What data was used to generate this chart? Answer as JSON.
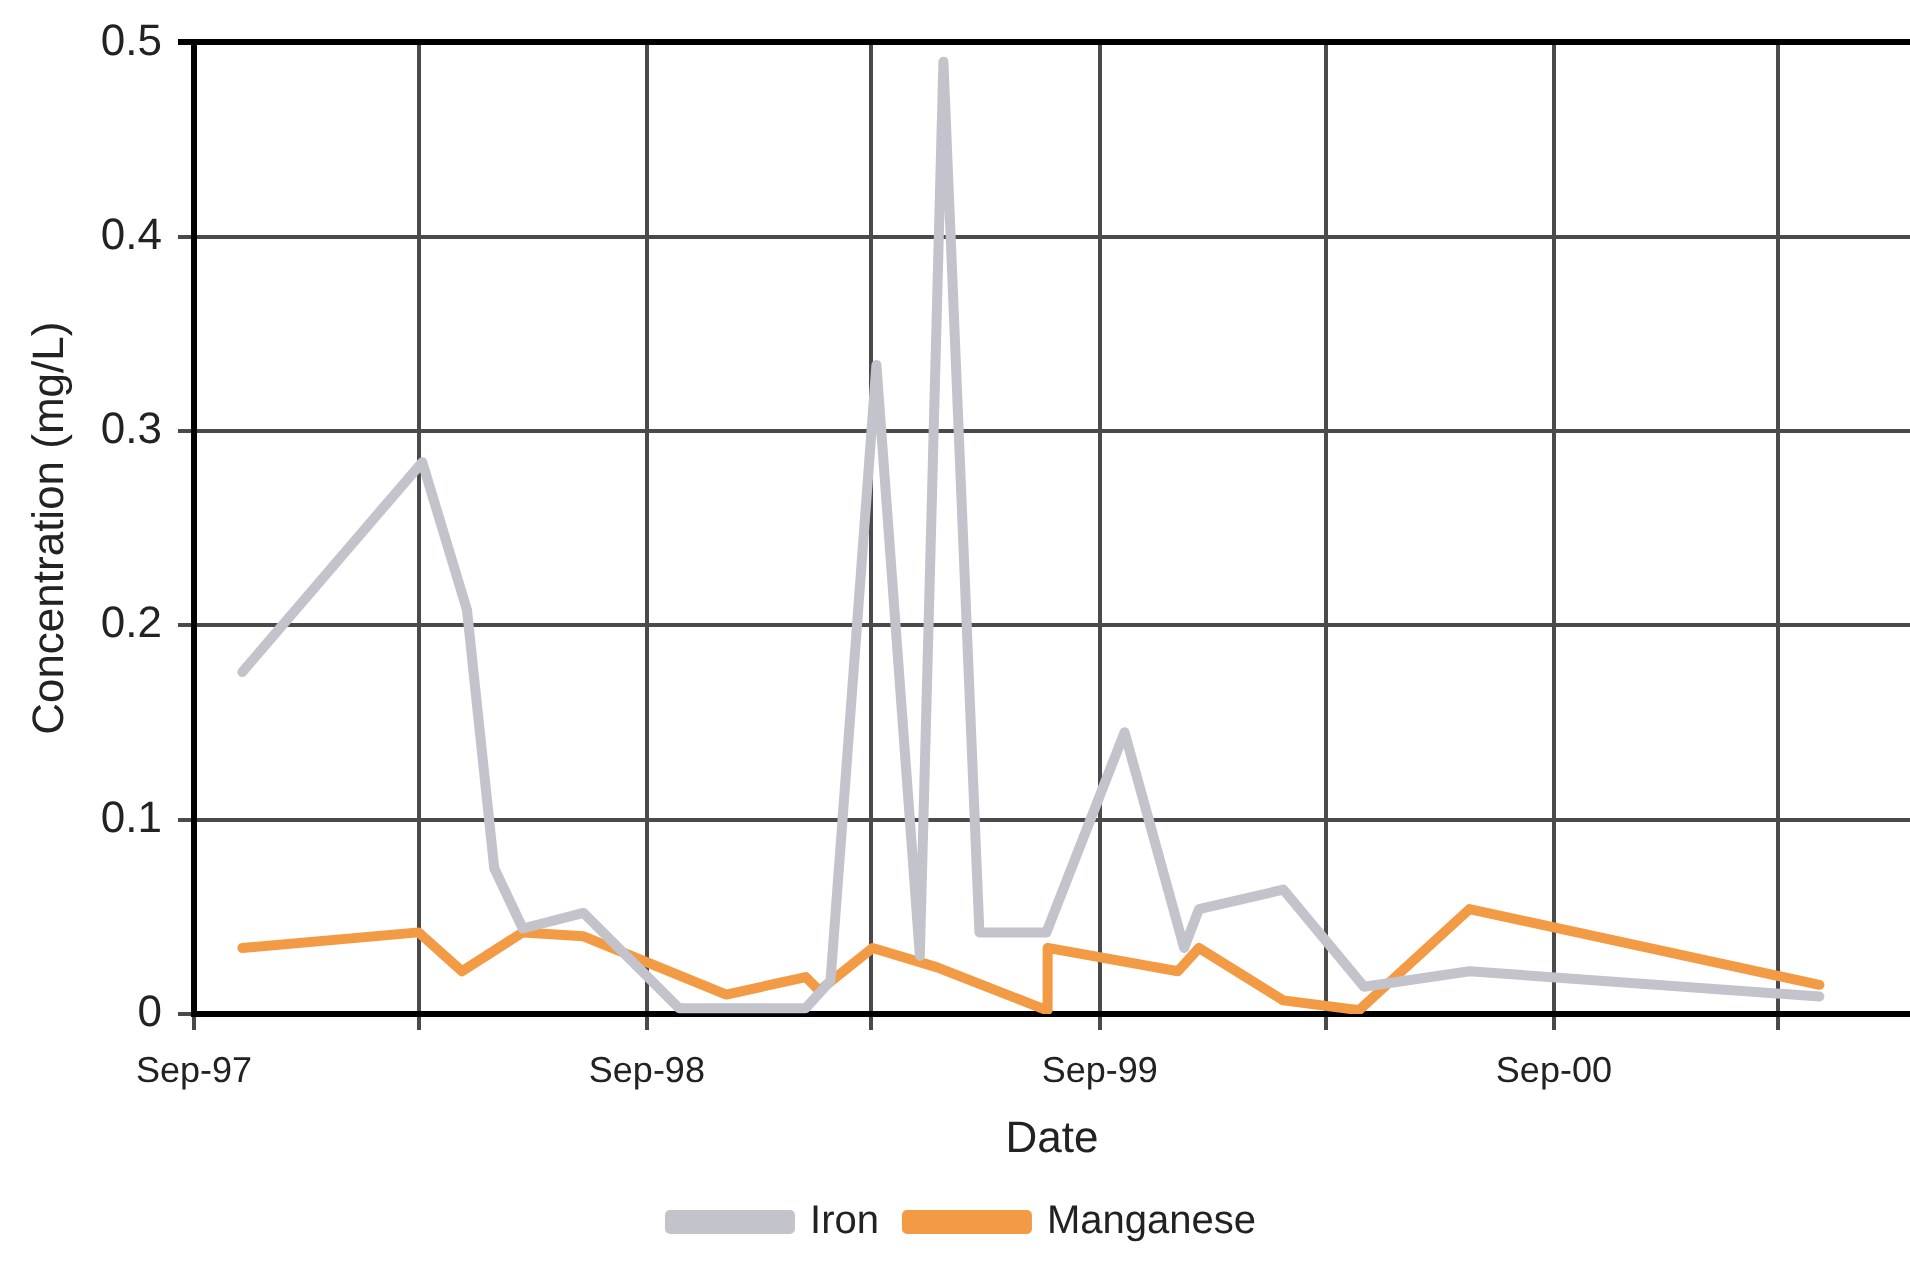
{
  "chart_data": {
    "type": "line",
    "xlabel": "Date",
    "ylabel": "Concentration (mg/L)",
    "xlim": [
      "1997-09-01",
      "2001-06-15"
    ],
    "xticks": [
      {
        "value": "1997-09-01",
        "label": "Sep-97"
      },
      {
        "value": "1998-03-01",
        "label": null
      },
      {
        "value": "1998-09-01",
        "label": "Sep-98"
      },
      {
        "value": "1999-03-01",
        "label": null
      },
      {
        "value": "1999-09-01",
        "label": "Sep-99"
      },
      {
        "value": "2000-03-01",
        "label": null
      },
      {
        "value": "2000-09-01",
        "label": "Sep-00"
      },
      {
        "value": "2001-03-01",
        "label": null
      }
    ],
    "ylim": [
      0,
      0.5
    ],
    "yticks": [
      0,
      0.1,
      0.2,
      0.3,
      0.4,
      0.5
    ],
    "grid": true,
    "legend": "bottom",
    "marker": "none",
    "line_style": "solid",
    "series": [
      {
        "name": "Iron",
        "color": "#c3c3cb",
        "x": [
          "1997-10-10",
          "1998-03-04",
          "1998-04-09",
          "1998-05-01",
          "1998-05-24",
          "1998-07-12",
          "1998-09-27",
          "1999-01-07",
          "1999-01-27",
          "1999-03-05",
          "1999-04-09",
          "1999-04-28",
          "1999-05-27",
          "1999-07-20",
          "1999-09-21",
          "1999-11-08",
          "1999-11-20",
          "2000-01-27",
          "2000-04-01",
          "2000-06-25",
          "2001-04-03"
        ],
        "values": [
          0.176,
          0.284,
          0.208,
          0.075,
          0.044,
          0.052,
          0.003,
          0.003,
          0.017,
          0.334,
          0.03,
          0.49,
          0.042,
          0.042,
          0.145,
          0.034,
          0.054,
          0.064,
          0.014,
          0.022,
          0.009
        ]
      },
      {
        "name": "Manganese",
        "color": "#f39a45",
        "x": [
          "1997-10-10",
          "1998-03-01",
          "1998-04-05",
          "1998-05-24",
          "1998-07-12",
          "1998-11-04",
          "1999-01-07",
          "1999-01-18",
          "1999-03-02",
          "1999-04-23",
          "1999-07-20",
          "1999-07-21",
          "1999-11-03",
          "1999-11-20",
          "2000-01-27",
          "2000-03-28",
          "2000-06-25",
          "2001-04-03"
        ],
        "values": [
          0.034,
          0.042,
          0.022,
          0.042,
          0.04,
          0.01,
          0.019,
          0.012,
          0.034,
          0.024,
          0.002,
          0.034,
          0.022,
          0.034,
          0.007,
          0.002,
          0.054,
          0.015
        ]
      }
    ]
  }
}
